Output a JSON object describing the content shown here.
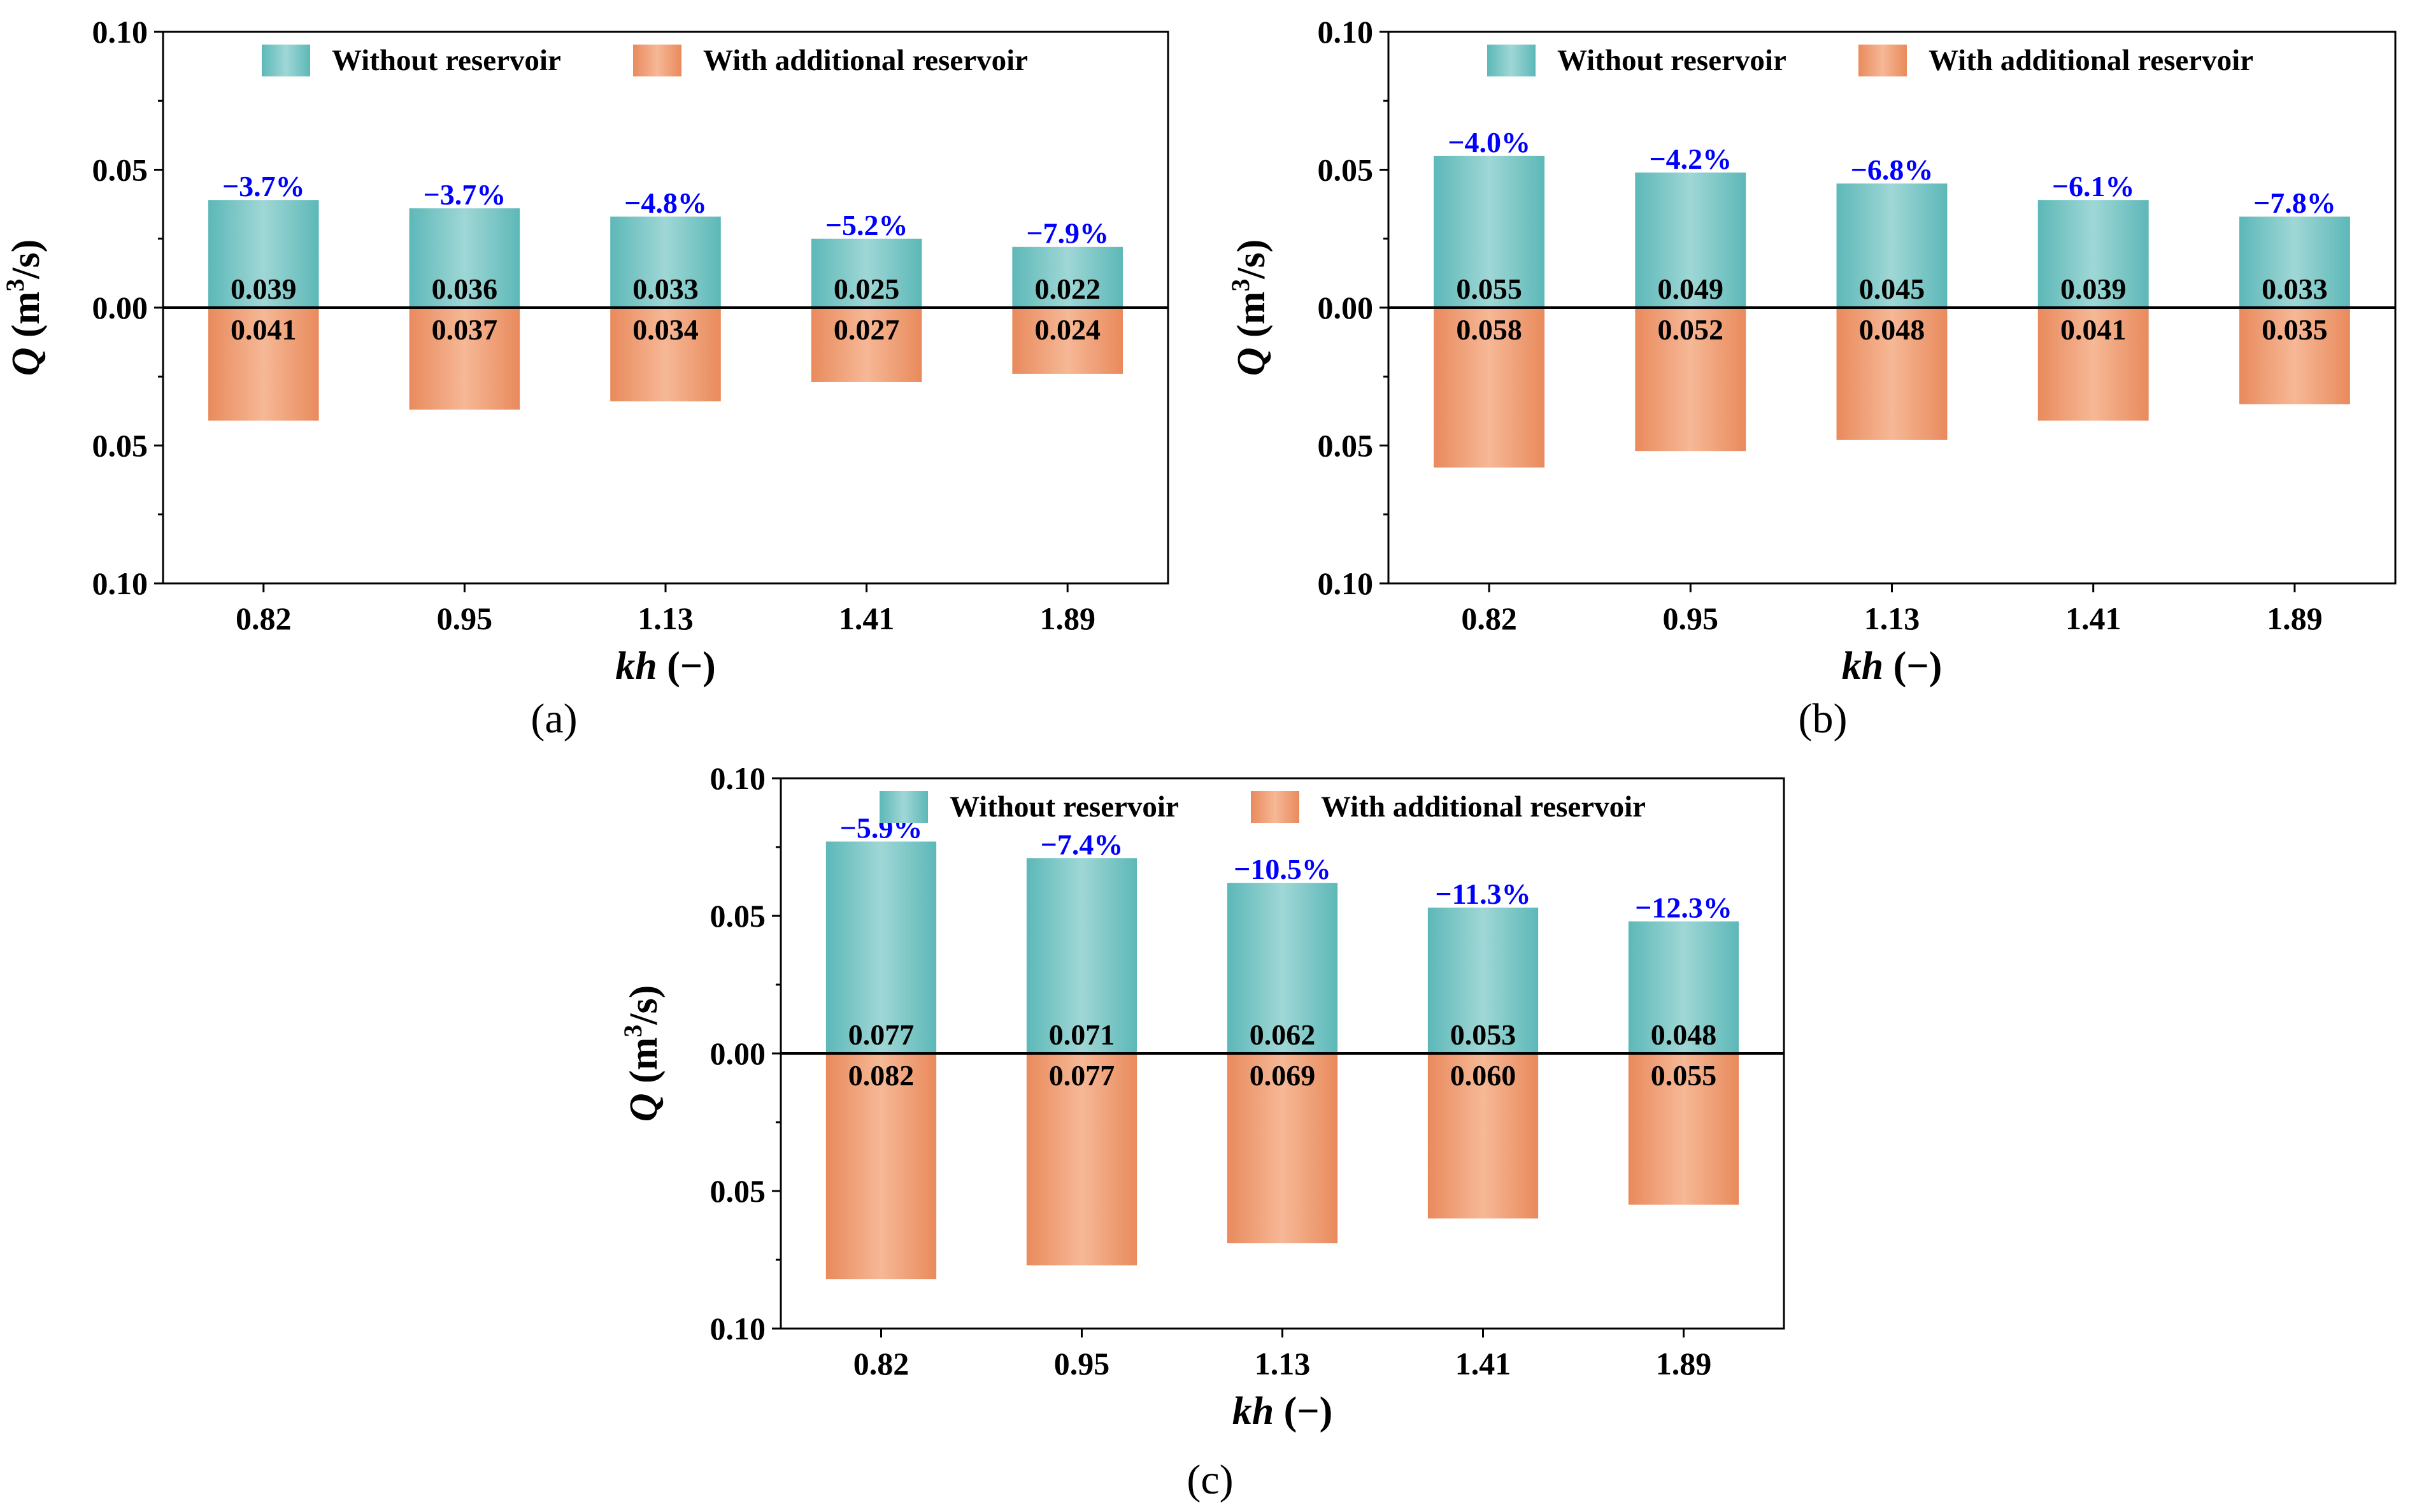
{
  "colors": {
    "without": "#5db8b8",
    "without_light": "#9fd7d6",
    "with": "#e98a5c",
    "with_light": "#f6b896",
    "percent": "#0000ff",
    "axis": "#000000"
  },
  "chart_data": [
    {
      "type": "bar",
      "panel_label": "(a)",
      "categories": [
        "0.82",
        "0.95",
        "1.13",
        "1.41",
        "1.89"
      ],
      "series": [
        {
          "name": "Without reservoir",
          "values": [
            0.039,
            0.036,
            0.033,
            0.025,
            0.022
          ],
          "labels": [
            "0.039",
            "0.036",
            "0.033",
            "0.025",
            "0.022"
          ]
        },
        {
          "name": "With additional reservoir",
          "values": [
            0.041,
            0.037,
            0.034,
            0.027,
            0.024
          ],
          "labels": [
            "0.041",
            "0.037",
            "0.034",
            "0.027",
            "0.024"
          ]
        }
      ],
      "percent_changes": [
        "−3.7%",
        "−3.7%",
        "−4.8%",
        "−5.2%",
        "−7.9%"
      ],
      "ylim": [
        -0.1,
        0.1
      ],
      "yticks": [
        "0.10",
        "0.05",
        "0.00",
        "0.05",
        "0.10"
      ],
      "xlabel_italic": "kh",
      "xlabel_rest": " (−)",
      "ylabel_italic": "Q",
      "ylabel_unit": "(m",
      "ylabel_sup": "3",
      "ylabel_end": "/s)",
      "legend": [
        "Without reservoir",
        "With additional reservoir"
      ]
    },
    {
      "type": "bar",
      "panel_label": "(b)",
      "categories": [
        "0.82",
        "0.95",
        "1.13",
        "1.41",
        "1.89"
      ],
      "series": [
        {
          "name": "Without reservoir",
          "values": [
            0.055,
            0.049,
            0.045,
            0.039,
            0.033
          ],
          "labels": [
            "0.055",
            "0.049",
            "0.045",
            "0.039",
            "0.033"
          ]
        },
        {
          "name": "With additional reservoir",
          "values": [
            0.058,
            0.052,
            0.048,
            0.041,
            0.035
          ],
          "labels": [
            "0.058",
            "0.052",
            "0.048",
            "0.041",
            "0.035"
          ]
        }
      ],
      "percent_changes": [
        "−4.0%",
        "−4.2%",
        "−6.8%",
        "−6.1%",
        "−7.8%"
      ],
      "ylim": [
        -0.1,
        0.1
      ],
      "yticks": [
        "0.10",
        "0.05",
        "0.00",
        "0.05",
        "0.10"
      ],
      "xlabel_italic": "kh",
      "xlabel_rest": " (−)",
      "ylabel_italic": "Q",
      "ylabel_unit": "(m",
      "ylabel_sup": "3",
      "ylabel_end": "/s)",
      "legend": [
        "Without reservoir",
        "With additional reservoir"
      ]
    },
    {
      "type": "bar",
      "panel_label": "(c)",
      "categories": [
        "0.82",
        "0.95",
        "1.13",
        "1.41",
        "1.89"
      ],
      "series": [
        {
          "name": "Without reservoir",
          "values": [
            0.077,
            0.071,
            0.062,
            0.053,
            0.048
          ],
          "labels": [
            "0.077",
            "0.071",
            "0.062",
            "0.053",
            "0.048"
          ]
        },
        {
          "name": "With additional reservoir",
          "values": [
            0.082,
            0.077,
            0.069,
            0.06,
            0.055
          ],
          "labels": [
            "0.082",
            "0.077",
            "0.069",
            "0.060",
            "0.055"
          ]
        }
      ],
      "percent_changes": [
        "−5.9%",
        "−7.4%",
        "−10.5%",
        "−11.3%",
        "−12.3%"
      ],
      "ylim": [
        -0.1,
        0.1
      ],
      "yticks": [
        "0.10",
        "0.05",
        "0.00",
        "0.05",
        "0.10"
      ],
      "xlabel_italic": "kh",
      "xlabel_rest": " (−)",
      "ylabel_italic": "Q",
      "ylabel_unit": "(m",
      "ylabel_sup": "3",
      "ylabel_end": "/s)",
      "legend": [
        "Without reservoir",
        "With additional reservoir"
      ]
    }
  ]
}
